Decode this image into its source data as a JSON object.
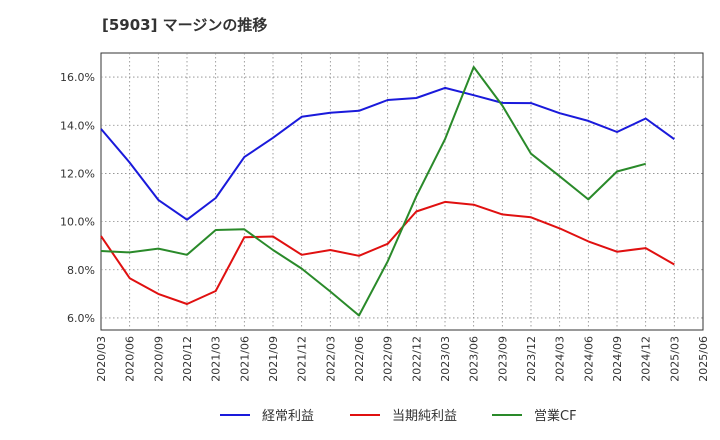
{
  "chart_data": {
    "type": "line",
    "title": "[5903]  マージンの推移",
    "xlabel": "",
    "ylabel": "",
    "x": [
      "2020/03",
      "2020/06",
      "2020/09",
      "2020/12",
      "2021/03",
      "2021/06",
      "2021/09",
      "2021/12",
      "2022/03",
      "2022/06",
      "2022/09",
      "2022/12",
      "2023/03",
      "2023/06",
      "2023/09",
      "2023/12",
      "2024/03",
      "2024/06",
      "2024/09",
      "2024/12",
      "2025/03",
      "2025/06"
    ],
    "ylim": [
      5.5,
      17.0
    ],
    "yticks": [
      6.0,
      8.0,
      10.0,
      12.0,
      14.0,
      16.0
    ],
    "ytick_labels": [
      "6.0%",
      "8.0%",
      "10.0%",
      "12.0%",
      "14.0%",
      "16.0%"
    ],
    "grid": true,
    "legend_position": "bottom",
    "series": [
      {
        "name": "経常利益",
        "color": "#1a1adb",
        "values": [
          13.85,
          12.45,
          10.9,
          10.08,
          10.98,
          12.68,
          13.48,
          14.35,
          14.52,
          14.6,
          15.05,
          15.13,
          15.55,
          15.25,
          14.93,
          14.92,
          14.5,
          14.18,
          13.72,
          14.28,
          13.42,
          null
        ]
      },
      {
        "name": "当期純利益",
        "color": "#e01010",
        "values": [
          9.4,
          7.65,
          7.0,
          6.58,
          7.12,
          9.35,
          9.38,
          8.62,
          8.82,
          8.58,
          9.08,
          10.42,
          10.82,
          10.7,
          10.3,
          10.18,
          9.72,
          9.18,
          8.75,
          8.9,
          8.22,
          null
        ]
      },
      {
        "name": "営業CF",
        "color": "#2a8a2a",
        "values": [
          8.78,
          8.72,
          8.88,
          8.62,
          9.65,
          9.68,
          8.82,
          8.05,
          7.1,
          6.1,
          8.35,
          11.05,
          13.42,
          16.42,
          14.82,
          12.82,
          11.88,
          10.92,
          12.08,
          12.4,
          null,
          null
        ]
      }
    ]
  }
}
